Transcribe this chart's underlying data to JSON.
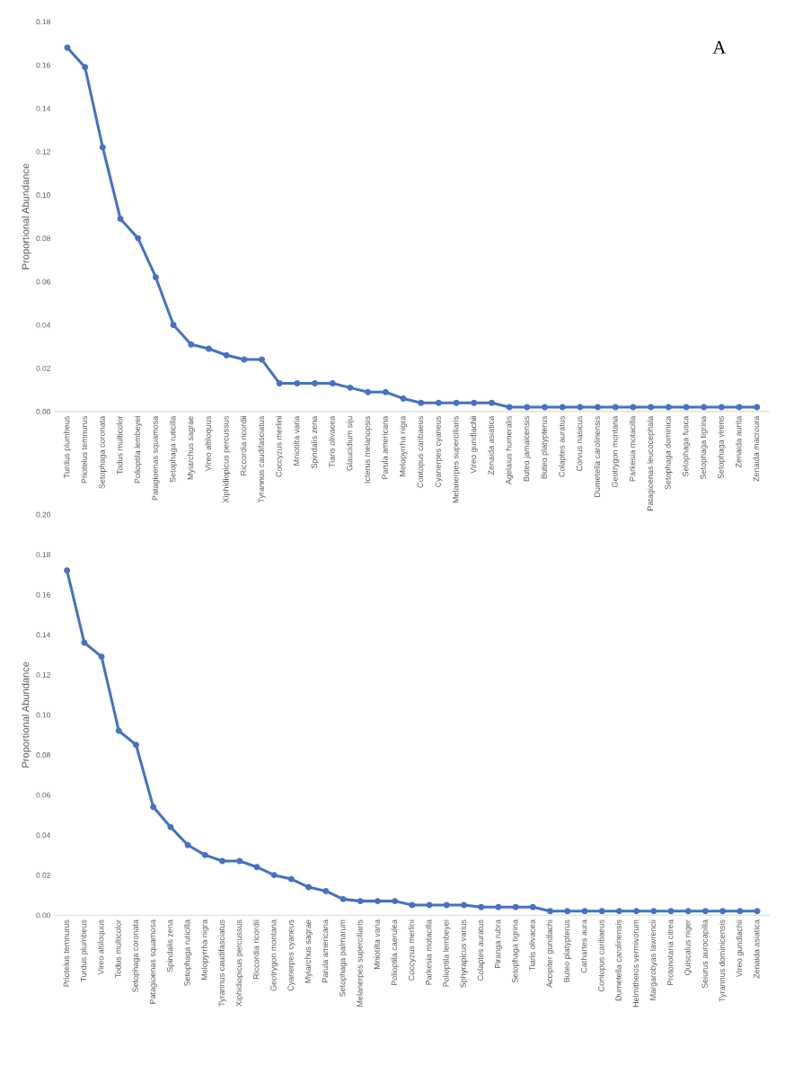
{
  "chart_data": [
    {
      "type": "line",
      "ylabel": "Proportional Abundance",
      "annotations": [
        "A"
      ],
      "marker": "circle",
      "line_style": "solid",
      "grid": false,
      "legend": false,
      "ylim": [
        0,
        0.18
      ],
      "yticks": [
        {
          "value": 0,
          "label": "0.00"
        },
        {
          "value": 0.02,
          "label": "0.02"
        },
        {
          "value": 0.04,
          "label": "0.04"
        },
        {
          "value": 0.06,
          "label": "0.06"
        },
        {
          "value": 0.08,
          "label": "0.08"
        },
        {
          "value": 0.1,
          "label": "0.10"
        },
        {
          "value": 0.12,
          "label": "0.12"
        },
        {
          "value": 0.14,
          "label": "0.14"
        },
        {
          "value": 0.16,
          "label": "0.16"
        },
        {
          "value": 0.18,
          "label": "0.18"
        }
      ],
      "categories": [
        "Turdus plumbeus",
        "Priotelus temnurus",
        "Setophaga coronata",
        "Todus multicolor",
        "Polioptila lembeyei",
        "Patagioenas squamosa",
        "Setophaga ruticilla",
        "Myiarchus sagrae",
        "Vireo altiloquus",
        "Xiphidiopicus percussus",
        "Riccordia ricordii",
        "Tyrannus caudifasciatus",
        "Coccyzus merlini",
        "Mniotilta varia",
        "Spindalis zena",
        "Tiaris olivacea",
        "Glaucidium siju",
        "Icterus melanopsis",
        "Parula americana",
        "Melopyrrha nigra",
        "Contopus caribaeus",
        "Cyanerpes cyaneus",
        "Melanerpes superciliaris",
        "Vireo gundlachii",
        "Zenaida asiatica",
        "Agelaius humeralis",
        "Buteo jamaicensis",
        "Buteo platypterus",
        "Colaptes auratus",
        "Corvus nasicus",
        "Dumetella carolinensis",
        "Geotrygon montana",
        "Parkesia motacilla",
        "Patagioenas leucocephala",
        "Setophaga dominica",
        "Setophaga fusca",
        "Setophaga tigrina",
        "Setophaga virens",
        "Zenaida aurita",
        "Zenaida macroura"
      ],
      "series": [
        {
          "color": "#4472c4",
          "values": [
            0.168,
            0.159,
            0.122,
            0.089,
            0.08,
            0.062,
            0.04,
            0.031,
            0.029,
            0.026,
            0.024,
            0.024,
            0.013,
            0.013,
            0.013,
            0.013,
            0.011,
            0.009,
            0.009,
            0.006,
            0.004,
            0.004,
            0.004,
            0.004,
            0.004,
            0.002,
            0.002,
            0.002,
            0.002,
            0.002,
            0.002,
            0.002,
            0.002,
            0.002,
            0.002,
            0.002,
            0.002,
            0.002,
            0.002,
            0.002
          ]
        }
      ]
    },
    {
      "type": "line",
      "ylabel": "Proportional Abundance",
      "marker": "circle",
      "line_style": "solid",
      "grid": false,
      "legend": false,
      "ylim": [
        0,
        0.2
      ],
      "yticks": [
        {
          "value": 0,
          "label": "0.00"
        },
        {
          "value": 0.02,
          "label": "0.02"
        },
        {
          "value": 0.04,
          "label": "0.04"
        },
        {
          "value": 0.06,
          "label": "0.06"
        },
        {
          "value": 0.08,
          "label": "0.08"
        },
        {
          "value": 0.1,
          "label": "0.10"
        },
        {
          "value": 0.12,
          "label": "0.12"
        },
        {
          "value": 0.14,
          "label": "0.14"
        },
        {
          "value": 0.16,
          "label": "0.16"
        },
        {
          "value": 0.18,
          "label": "0.18"
        },
        {
          "value": 0.2,
          "label": "0.20"
        }
      ],
      "categories": [
        "Priotelus temnurus",
        "Turdus plumbeus",
        "Vireo altiloquus",
        "Todus multicolor",
        "Setophaga coronata",
        "Patagioenas squamosa",
        "Spindalis zena",
        "Setophaga ruticilla",
        "Melopyrrha nigra",
        "Tyrannus caudifasciatus",
        "Xiphidiopicus percussus",
        "Riccordia ricordii",
        "Geotrygon montana",
        "Cyanerpes cyaneus",
        "Myiarchus sagrae",
        "Parula americana",
        "Setophaga palmarum",
        "Melanerpes superciliaris",
        "Mniotilta varia",
        "Polioptila caerulea",
        "Coccyzus merlini",
        "Parkesia motacilla",
        "Polioptila lembeyei",
        "Sphyrapicus varius",
        "Colaptes auratus",
        "Piranga rubra",
        "Setophaga tigrina",
        "Tiaris olivacea",
        "Accipiter gundlachi",
        "Buteo platypterus",
        "Cathartes aura",
        "Contopus caribaeus",
        "Dumetella carolinensis",
        "Helmitheros vermivorum",
        "Margarobyas lawrencii",
        "Protonotaria citrea",
        "Quiscalus niger",
        "Seiurus aurocapilla",
        "Tyrannus dominicensis",
        "Vireo gundlachii",
        "Zenaida asiatica"
      ],
      "series": [
        {
          "color": "#4472c4",
          "values": [
            0.172,
            0.136,
            0.129,
            0.092,
            0.085,
            0.054,
            0.044,
            0.035,
            0.03,
            0.027,
            0.027,
            0.024,
            0.02,
            0.018,
            0.014,
            0.012,
            0.008,
            0.007,
            0.007,
            0.007,
            0.005,
            0.005,
            0.005,
            0.005,
            0.004,
            0.004,
            0.004,
            0.004,
            0.002,
            0.002,
            0.002,
            0.002,
            0.002,
            0.002,
            0.002,
            0.002,
            0.002,
            0.002,
            0.002,
            0.002,
            0.002
          ]
        }
      ]
    }
  ]
}
